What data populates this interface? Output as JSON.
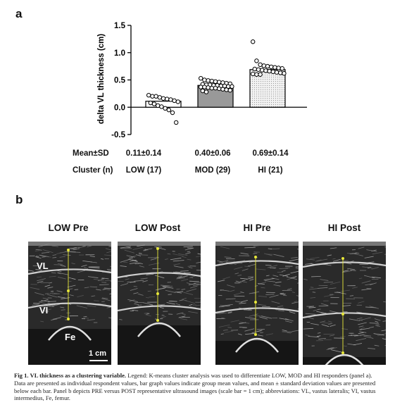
{
  "panels": {
    "a": "a",
    "b": "b"
  },
  "chart_data": {
    "type": "bar",
    "ylabel": "delta VL thickness (cm)",
    "ylim": [
      -0.5,
      1.5
    ],
    "yticks": [
      -0.5,
      0.0,
      0.5,
      1.0,
      1.5
    ],
    "ytick_labels": [
      "-0.5",
      "0.0",
      "0.5",
      "1.0",
      "1.5"
    ],
    "categories": [
      "LOW (17)",
      "MOD (29)",
      "HI (21)"
    ],
    "values": [
      0.11,
      0.4,
      0.69
    ],
    "bar_colors": [
      "#ffffff",
      "#999999",
      "#e6e6e6"
    ],
    "points": [
      [
        0.22,
        0.2,
        0.2,
        0.18,
        0.16,
        0.15,
        0.14,
        0.12,
        0.1,
        0.08,
        0.06,
        0.03,
        0.01,
        -0.02,
        -0.05,
        -0.1,
        -0.28
      ],
      [
        0.53,
        0.5,
        0.49,
        0.48,
        0.47,
        0.46,
        0.45,
        0.44,
        0.43,
        0.42,
        0.41,
        0.41,
        0.4,
        0.4,
        0.39,
        0.39,
        0.38,
        0.38,
        0.37,
        0.37,
        0.36,
        0.35,
        0.35,
        0.34,
        0.33,
        0.32,
        0.31,
        0.3,
        0.28
      ],
      [
        1.2,
        0.85,
        0.78,
        0.76,
        0.75,
        0.74,
        0.73,
        0.72,
        0.71,
        0.7,
        0.69,
        0.68,
        0.67,
        0.66,
        0.65,
        0.64,
        0.63,
        0.62,
        0.61,
        0.6,
        0.6
      ]
    ]
  },
  "stats": {
    "mean_label": "Mean±SD",
    "cluster_label": "Cluster  (n)",
    "means": [
      "0.11±0.14",
      "0.40±0.06",
      "0.69±0.14"
    ],
    "clusters": [
      "LOW (17)",
      "MOD (29)",
      "HI (21)"
    ]
  },
  "ultrasound": {
    "titles": [
      "LOW Pre",
      "LOW Post",
      "HI Pre",
      "HI Post"
    ],
    "labels": {
      "vl": "VL",
      "vi": "VI",
      "fe": "Fe"
    },
    "scale_bar": "1 cm",
    "line_color": "#e8e83a"
  },
  "caption": {
    "lead": "Fig 1.  VL thickness as a clustering variable.",
    "body": " Legend: K-means cluster analysis was used to differentiate LOW, MOD and HI responders (panel a). Data are presented as individual respondent values, bar graph values indicate group mean values, and mean ± standard deviation values are presented below each bar. Panel b depicts PRE versus POST representative ultrasound images (scale bar = 1 cm); abbreviations: VL, vastus lateralis; VI, vastus intermedius, Fe, femur."
  }
}
